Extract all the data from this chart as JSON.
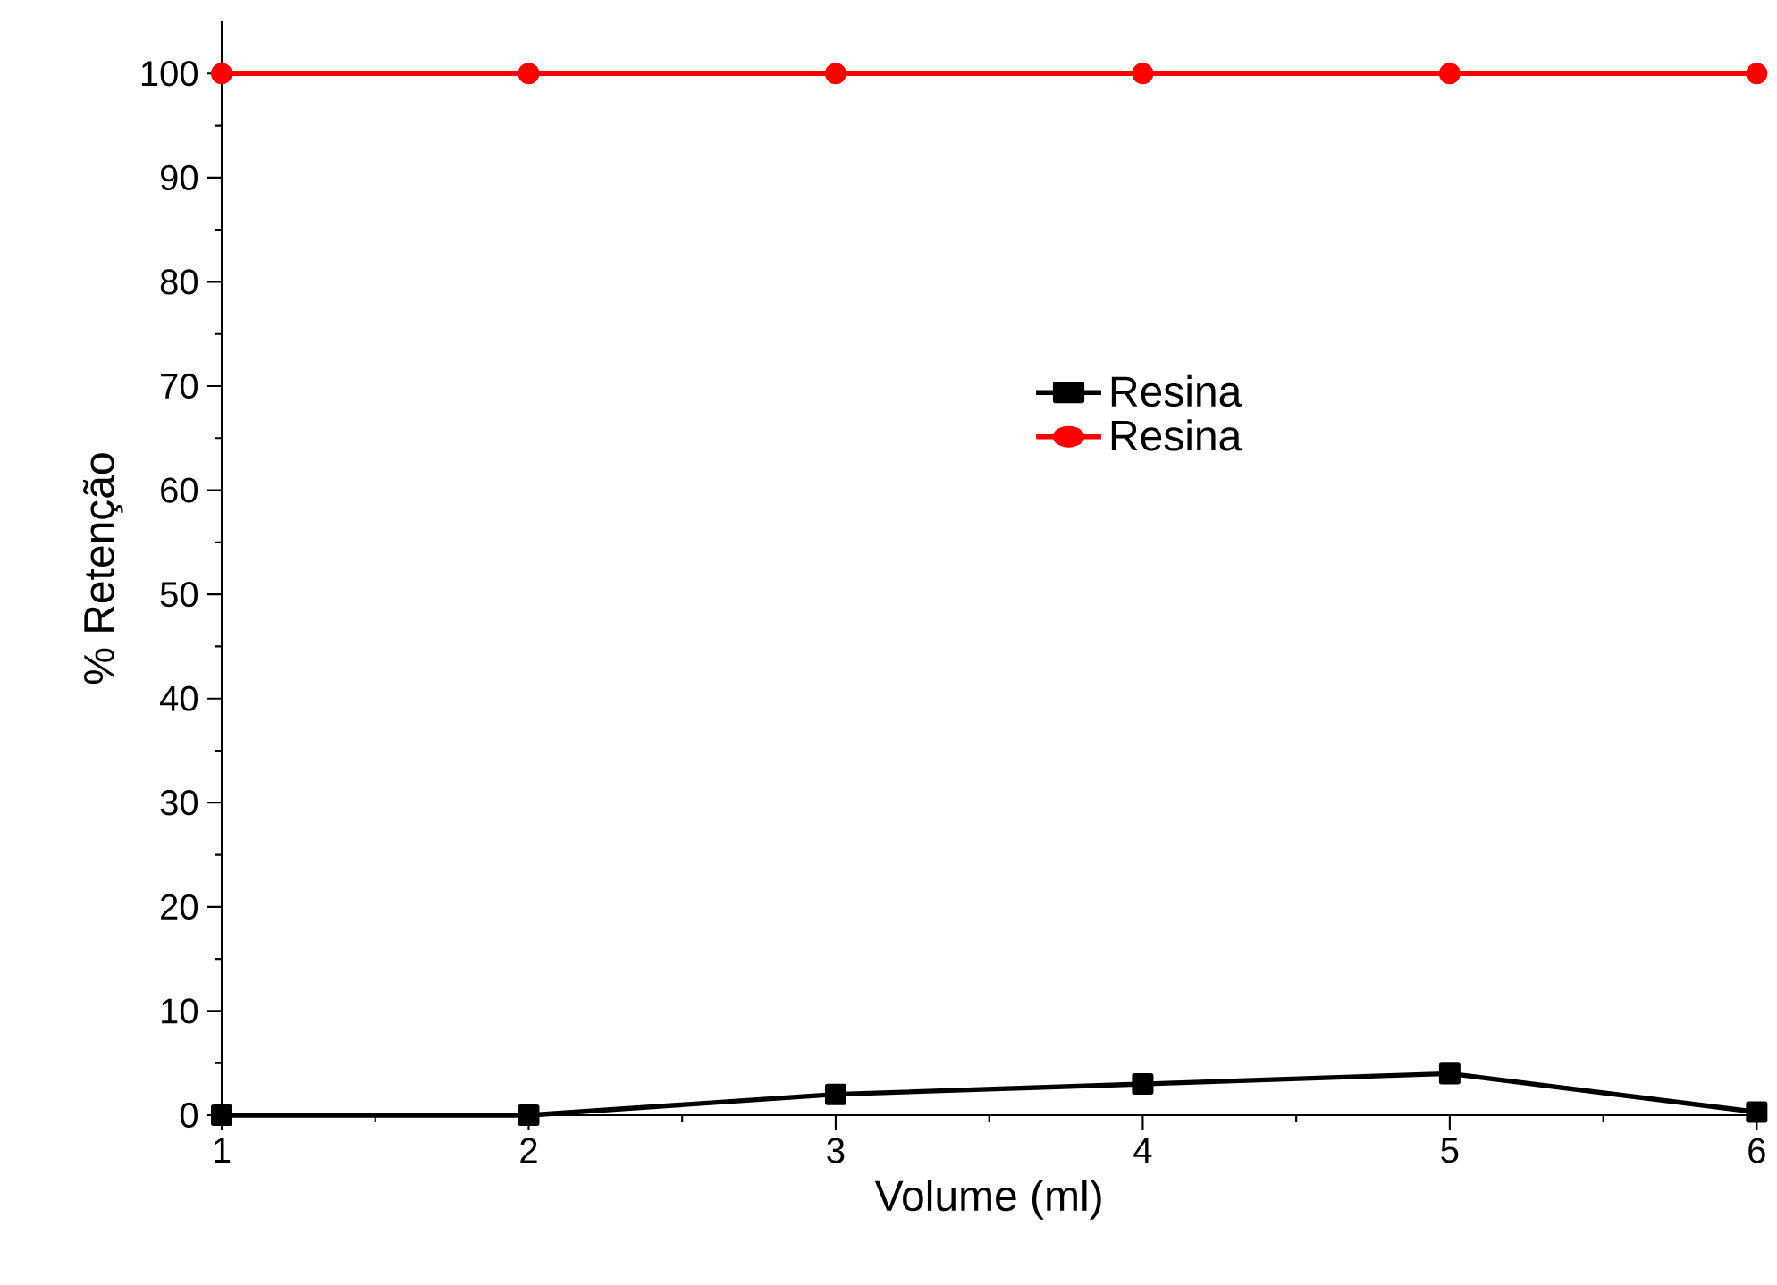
{
  "chart_data": {
    "type": "line",
    "xlabel": "Volume (ml)",
    "ylabel": "% Retenção",
    "x": [
      1,
      2,
      3,
      4,
      5,
      6
    ],
    "series": [
      {
        "name": "Resina",
        "color": "#000000",
        "marker": "square",
        "values": [
          0,
          0,
          2,
          3,
          4,
          0.3
        ]
      },
      {
        "name": "Resina",
        "color": "#ff0000",
        "marker": "circle",
        "values": [
          100,
          100,
          100,
          100,
          100,
          100
        ]
      }
    ],
    "xlim": [
      1,
      6
    ],
    "ylim": [
      0,
      105
    ],
    "xticks": [
      1,
      2,
      3,
      4,
      5,
      6
    ],
    "yticks": [
      0,
      10,
      20,
      30,
      40,
      50,
      60,
      70,
      80,
      90,
      100
    ],
    "grid": false,
    "legend": "right",
    "line_style": "solid"
  }
}
